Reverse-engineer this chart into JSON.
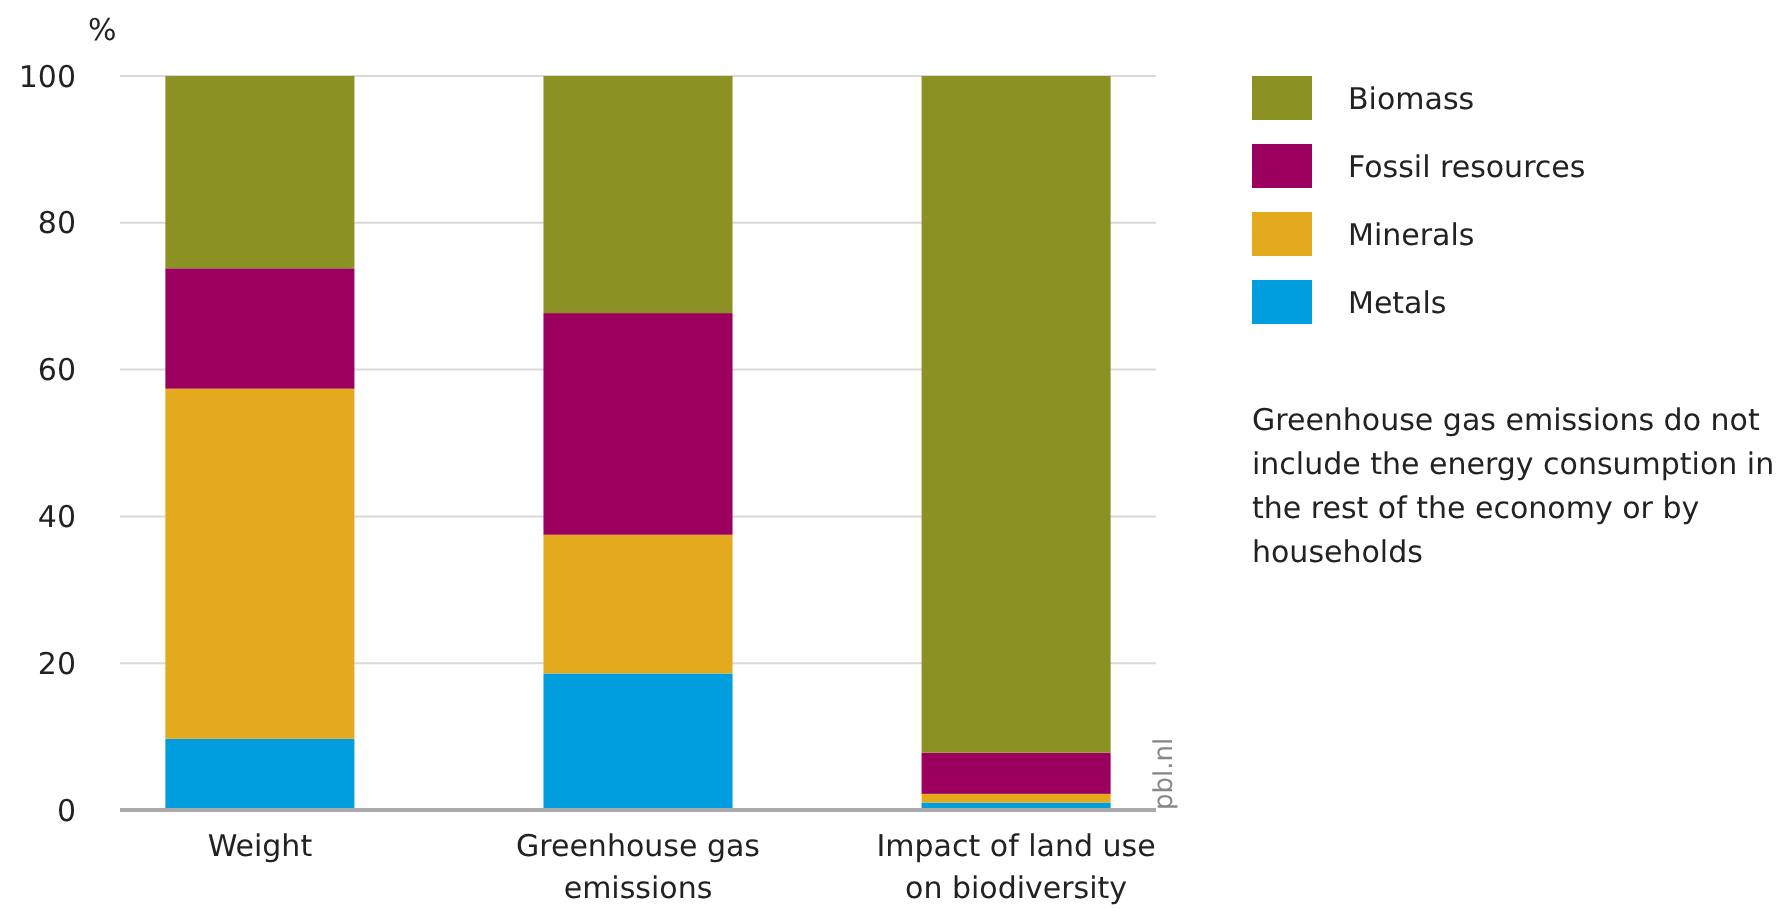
{
  "chart_data": {
    "type": "bar",
    "stacked": true,
    "ylabel": "%",
    "categories": [
      "Weight",
      "Greenhouse gas emissions",
      "Impact of land use on biodiversity"
    ],
    "series": [
      {
        "name": "Metals",
        "color": "#009ddf",
        "values": [
          9.7,
          18.6,
          1
        ]
      },
      {
        "name": "Minerals",
        "color": "#e4aa1e",
        "values": [
          47.7,
          18.9,
          1.2
        ]
      },
      {
        "name": "Fossil resources",
        "color": "#9c005e",
        "values": [
          16.4,
          30.2,
          5.6
        ]
      },
      {
        "name": "Biomass",
        "color": "#8c9123",
        "values": [
          26.2,
          32.3,
          92.2
        ]
      }
    ],
    "ylim": [
      0,
      100
    ],
    "yticks": [
      0,
      20,
      40,
      60,
      80,
      100
    ],
    "grid": "y",
    "legend": "right",
    "annotations": [
      "Greenhouse gas emissions do not include the energy consumption in the rest of the economy or by households",
      "pbl.nl"
    ]
  }
}
